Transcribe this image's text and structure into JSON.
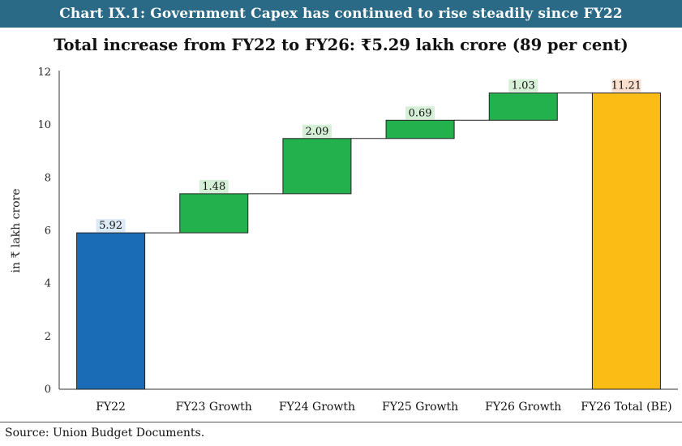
{
  "header": {
    "title": "Chart IX.1: Government Capex has continued to rise steadily since FY22"
  },
  "subtitle": "Total increase from FY22 to FY26: ₹5.29 lakh crore (89 per cent)",
  "source": "Source: Union Budget Documents.",
  "colors": {
    "header_bg": "#2a6a87",
    "start_bar": "#1b6cb7",
    "growth_bar": "#22b14c",
    "total_bar": "#fbbc15",
    "start_label_bg": "#dce9f6",
    "growth_label_bg": "#d6efd7",
    "total_label_bg": "#fbe0d0"
  },
  "chart_data": {
    "type": "waterfall",
    "categories": [
      "FY22",
      "FY23 Growth",
      "FY24 Growth",
      "FY25 Growth",
      "FY26 Growth",
      "FY26 Total (BE)"
    ],
    "values": [
      5.92,
      1.48,
      2.09,
      0.69,
      1.03,
      11.21
    ],
    "kinds": [
      "start",
      "increase",
      "increase",
      "increase",
      "increase",
      "total"
    ],
    "data_labels": [
      "5.92",
      "1.48",
      "2.09",
      "0.69",
      "1.03",
      "11.21"
    ],
    "ylabel": "in ₹ lakh crore",
    "ylim": [
      0,
      12
    ],
    "yticks": [
      "0",
      "2",
      "4",
      "6",
      "8",
      "10",
      "12"
    ],
    "grid": false,
    "connectors": true
  }
}
